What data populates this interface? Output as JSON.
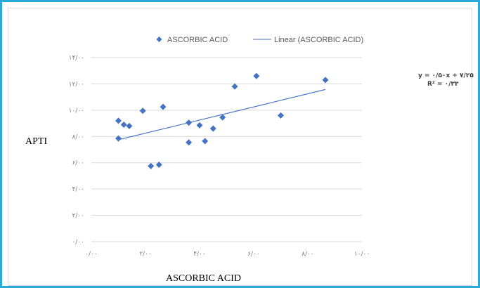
{
  "chart_data": {
    "type": "scatter",
    "title": "",
    "xlabel": "ASCORBIC ACID",
    "ylabel": "APTI",
    "xlim": [
      0,
      10
    ],
    "ylim": [
      0,
      14
    ],
    "x_ticks": [
      "۰/۰۰",
      "۲/۰۰",
      "۴/۰۰",
      "۶/۰۰",
      "۸/۰۰",
      "۱۰/۰۰"
    ],
    "x_tick_values": [
      0,
      2,
      4,
      6,
      8,
      10
    ],
    "y_ticks": [
      "۰/۰۰",
      "۲/۰۰",
      "۴/۰۰",
      "۶/۰۰",
      "۸/۰۰",
      "۱۰/۰۰",
      "۱۲/۰۰",
      "۱۴/۰۰"
    ],
    "y_tick_values": [
      0,
      2,
      4,
      6,
      8,
      10,
      12,
      14
    ],
    "grid": "horizontal",
    "legend_position": "top",
    "series": [
      {
        "name": "ASCORBIC ACID",
        "marker": "diamond",
        "color": "#4472c4",
        "x": [
          1.0,
          1.0,
          1.2,
          1.4,
          1.9,
          2.2,
          2.5,
          2.65,
          3.6,
          3.6,
          4.0,
          4.2,
          4.5,
          4.85,
          5.3,
          6.1,
          7.0,
          8.65
        ],
        "y": [
          7.85,
          9.2,
          8.9,
          8.8,
          9.95,
          5.75,
          5.85,
          10.25,
          9.05,
          7.55,
          8.85,
          7.65,
          8.6,
          9.45,
          11.8,
          12.6,
          9.6,
          12.3
        ]
      }
    ],
    "trendline": {
      "name": "Linear (ASCORBIC ACID)",
      "type": "linear",
      "color": "#4472c4",
      "x_range": [
        1.0,
        8.65
      ],
      "slope": 0.5,
      "intercept": 7.25
    },
    "equation_lines": [
      "y = ۰/۵۰x + ۷/۲۵",
      "R² = ۰/۳۳"
    ]
  }
}
